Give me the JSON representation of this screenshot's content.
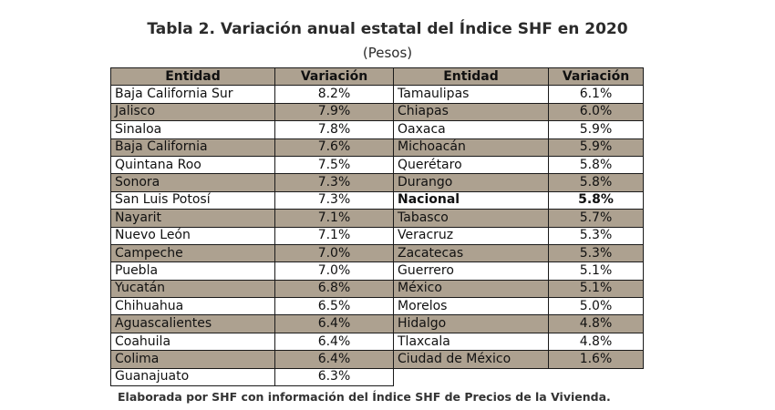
{
  "title": "Tabla 2. Variación anual estatal del Índice SHF en 2020",
  "subtitle": "(Pesos)",
  "headers": {
    "entidad": "Entidad",
    "variacion": "Variación"
  },
  "colors": {
    "shade": "#ada190",
    "border": "#1a1a1a"
  },
  "left": [
    {
      "entidad": "Baja California Sur",
      "variacion": "8.2%"
    },
    {
      "entidad": "Jalisco",
      "variacion": "7.9%"
    },
    {
      "entidad": "Sinaloa",
      "variacion": "7.8%"
    },
    {
      "entidad": "Baja California",
      "variacion": "7.6%"
    },
    {
      "entidad": "Quintana Roo",
      "variacion": "7.5%"
    },
    {
      "entidad": "Sonora",
      "variacion": "7.3%"
    },
    {
      "entidad": "San Luis Potosí",
      "variacion": "7.3%"
    },
    {
      "entidad": "Nayarit",
      "variacion": "7.1%"
    },
    {
      "entidad": "Nuevo León",
      "variacion": "7.1%"
    },
    {
      "entidad": "Campeche",
      "variacion": "7.0%"
    },
    {
      "entidad": "Puebla",
      "variacion": "7.0%"
    },
    {
      "entidad": "Yucatán",
      "variacion": "6.8%"
    },
    {
      "entidad": "Chihuahua",
      "variacion": "6.5%"
    },
    {
      "entidad": "Aguascalientes",
      "variacion": "6.4%"
    },
    {
      "entidad": "Coahuila",
      "variacion": "6.4%"
    },
    {
      "entidad": "Colima",
      "variacion": "6.4%"
    },
    {
      "entidad": "Guanajuato",
      "variacion": "6.3%"
    }
  ],
  "right": [
    {
      "entidad": "Tamaulipas",
      "variacion": "6.1%"
    },
    {
      "entidad": "Chiapas",
      "variacion": "6.0%"
    },
    {
      "entidad": "Oaxaca",
      "variacion": "5.9%"
    },
    {
      "entidad": "Michoacán",
      "variacion": "5.9%"
    },
    {
      "entidad": "Querétaro",
      "variacion": "5.8%"
    },
    {
      "entidad": "Durango",
      "variacion": "5.8%"
    },
    {
      "entidad": "Nacional",
      "variacion": "5.8%",
      "bold": true
    },
    {
      "entidad": "Tabasco",
      "variacion": "5.7%"
    },
    {
      "entidad": "Veracruz",
      "variacion": "5.3%"
    },
    {
      "entidad": "Zacatecas",
      "variacion": "5.3%"
    },
    {
      "entidad": "Guerrero",
      "variacion": "5.1%"
    },
    {
      "entidad": "México",
      "variacion": "5.1%"
    },
    {
      "entidad": "Morelos",
      "variacion": "5.0%"
    },
    {
      "entidad": "Hidalgo",
      "variacion": "4.8%"
    },
    {
      "entidad": "Tlaxcala",
      "variacion": "4.8%"
    },
    {
      "entidad": "Ciudad de México",
      "variacion": "1.6%"
    }
  ],
  "footer": "Elaborada por SHF con información del Índice SHF de Precios de la Vivienda."
}
